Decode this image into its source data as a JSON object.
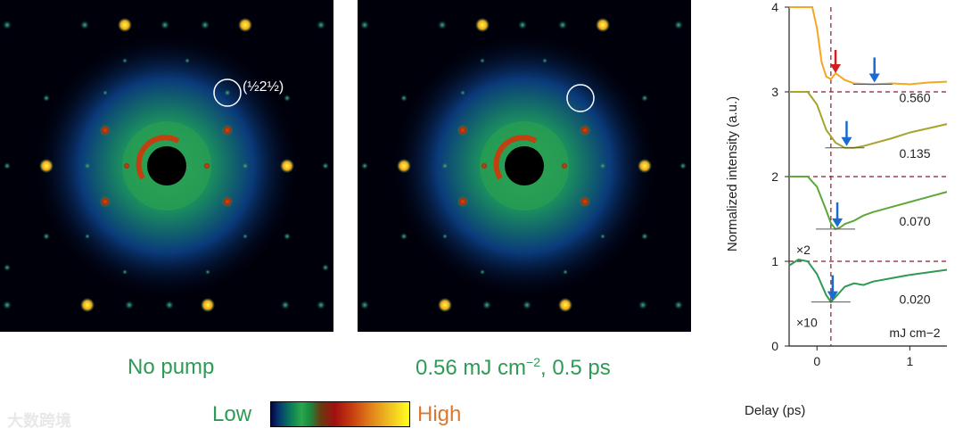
{
  "panel_a": {
    "caption": "No pump",
    "index_label": "(½2½)"
  },
  "panel_b": {
    "caption_main": "0.56 mJ cm",
    "caption_exp": "−2",
    "caption_tail": ", 0.5 ps"
  },
  "colorscale": {
    "low": "Low",
    "high": "High"
  },
  "watermark": "大数跨境",
  "chart_data": {
    "type": "line",
    "xlabel": "Delay (ps)",
    "ylabel": "Normalized intensity (a.u.)",
    "xlim": [
      -0.3,
      1.4
    ],
    "ylim": [
      0,
      4
    ],
    "xticks": [
      "0",
      "1"
    ],
    "yticks": [
      "0",
      "1",
      "2",
      "3",
      "4"
    ],
    "time_zero_marker": 0.15,
    "baselines": [
      1,
      2,
      3
    ],
    "fluence_unit": "mJ cm−2",
    "series": [
      {
        "name": "0.560",
        "color": "#f5a623",
        "offset": 3,
        "x": [
          -0.3,
          -0.05,
          0.0,
          0.05,
          0.1,
          0.15,
          0.2,
          0.3,
          0.4,
          0.6,
          0.8,
          1.0,
          1.2,
          1.4
        ],
        "y": [
          4.0,
          4.0,
          3.75,
          3.35,
          3.18,
          3.15,
          3.22,
          3.14,
          3.1,
          3.09,
          3.1,
          3.09,
          3.11,
          3.12
        ]
      },
      {
        "name": "0.135",
        "color": "#a6a42a",
        "offset": 2,
        "x": [
          -0.3,
          -0.1,
          0.0,
          0.1,
          0.2,
          0.3,
          0.4,
          0.5,
          0.6,
          0.8,
          1.0,
          1.2,
          1.4
        ],
        "y": [
          3.0,
          3.0,
          2.85,
          2.55,
          2.4,
          2.34,
          2.34,
          2.36,
          2.39,
          2.45,
          2.52,
          2.57,
          2.62
        ]
      },
      {
        "name": "0.070",
        "color": "#5ea83a",
        "offset": 1,
        "scale": "×2",
        "x": [
          -0.3,
          -0.1,
          0.0,
          0.1,
          0.15,
          0.2,
          0.25,
          0.3,
          0.4,
          0.5,
          0.6,
          0.8,
          1.0,
          1.2,
          1.4
        ],
        "y": [
          2.0,
          2.0,
          1.88,
          1.6,
          1.45,
          1.38,
          1.4,
          1.44,
          1.48,
          1.54,
          1.58,
          1.64,
          1.7,
          1.76,
          1.82
        ]
      },
      {
        "name": "0.020",
        "color": "#2e9a55",
        "offset": 0,
        "scale": "×10",
        "x": [
          -0.3,
          -0.2,
          -0.1,
          0.0,
          0.1,
          0.15,
          0.2,
          0.3,
          0.4,
          0.5,
          0.6,
          0.8,
          1.0,
          1.2,
          1.4
        ],
        "y": [
          0.95,
          1.02,
          1.0,
          0.85,
          0.6,
          0.52,
          0.58,
          0.7,
          0.74,
          0.72,
          0.76,
          0.8,
          0.84,
          0.87,
          0.9
        ]
      }
    ]
  }
}
